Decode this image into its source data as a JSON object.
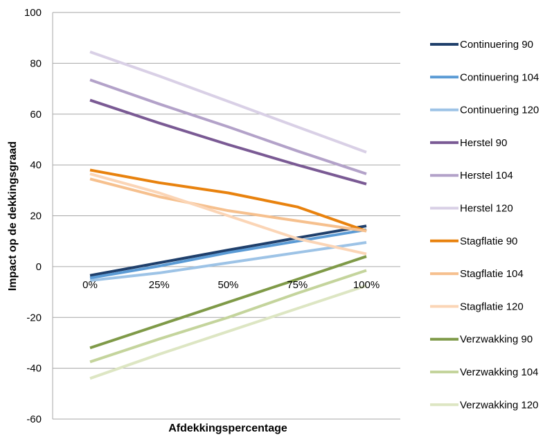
{
  "chart_data": {
    "type": "line",
    "title": "",
    "xlabel": "Afdekkingspercentage",
    "ylabel": "Impact op de dekkingsgraad",
    "categories": [
      "0%",
      "25%",
      "50%",
      "75%",
      "100%"
    ],
    "ylim": [
      -60,
      100
    ],
    "yticks": [
      "100",
      "80",
      "60",
      "40",
      "20",
      "0",
      "-20",
      "-40",
      "-60"
    ],
    "grid": true,
    "legend_position": "right",
    "series": [
      {
        "name": "Continuering 90",
        "color": "#1f3f6b",
        "values": [
          -3.5,
          1.5,
          6.5,
          11.3,
          16.0
        ]
      },
      {
        "name": "Continuering 104",
        "color": "#5b9bd5",
        "values": [
          -4.5,
          0.2,
          5.5,
          10.0,
          14.5
        ]
      },
      {
        "name": "Continuering 120",
        "color": "#9dc3e6",
        "values": [
          -5.5,
          -2.5,
          1.5,
          5.5,
          9.5
        ]
      },
      {
        "name": "Herstel 90",
        "color": "#7a5a94",
        "values": [
          65.5,
          56.5,
          48.0,
          40.0,
          32.5
        ]
      },
      {
        "name": "Herstel 104",
        "color": "#b3a2c9",
        "values": [
          73.5,
          64.0,
          55.0,
          45.5,
          36.5
        ]
      },
      {
        "name": "Herstel 120",
        "color": "#d9d0e6",
        "values": [
          84.5,
          75.0,
          65.0,
          55.0,
          45.0
        ]
      },
      {
        "name": "Stagflatie 90",
        "color": "#e8820e",
        "values": [
          38.0,
          33.0,
          29.0,
          23.5,
          14.0
        ]
      },
      {
        "name": "Stagflatie 104",
        "color": "#f6c08e",
        "values": [
          34.5,
          27.5,
          22.0,
          18.0,
          14.0
        ]
      },
      {
        "name": "Stagflatie 120",
        "color": "#fbd5b6",
        "values": [
          36.5,
          29.0,
          20.0,
          11.0,
          5.0
        ]
      },
      {
        "name": "Verzwakking 90",
        "color": "#7f9a48",
        "values": [
          -32.0,
          -23.0,
          -14.0,
          -5.0,
          4.0
        ]
      },
      {
        "name": "Verzwakking 104",
        "color": "#c4d49c",
        "values": [
          -37.5,
          -28.5,
          -20.0,
          -10.5,
          -1.5
        ]
      },
      {
        "name": "Verzwakking 120",
        "color": "#dde6c3",
        "values": [
          -44.0,
          -34.5,
          -25.5,
          -16.5,
          -7.5
        ]
      }
    ]
  }
}
